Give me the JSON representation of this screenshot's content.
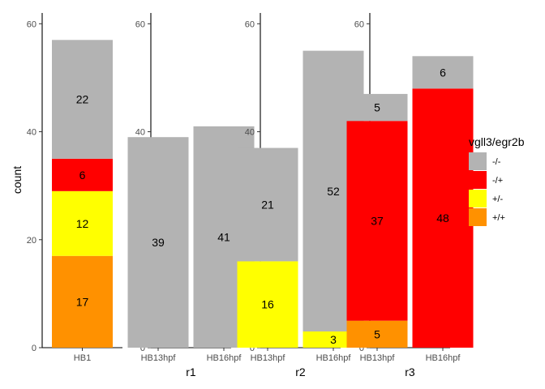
{
  "chart_data": {
    "type": "bar",
    "stacked": true,
    "ylabel": "count",
    "ylim": [
      0,
      62
    ],
    "yticks": [
      0,
      20,
      40,
      60
    ],
    "grid": false,
    "legend": {
      "title": "vgll3/egr2b",
      "placement": "right",
      "items": [
        {
          "label": "-/-",
          "color": "#b3b3b3"
        },
        {
          "label": "-/+",
          "color": "#ff0000"
        },
        {
          "label": "+/-",
          "color": "#ffff00"
        },
        {
          "label": "+/+",
          "color": "#ff9100"
        }
      ]
    },
    "panels": [
      {
        "facet_label": "",
        "categories": [
          "HB1"
        ],
        "bars": [
          {
            "category": "HB1",
            "segments": [
              {
                "genotype": "+/+",
                "value": 17
              },
              {
                "genotype": "+/-",
                "value": 12
              },
              {
                "genotype": "-/+",
                "value": 6
              },
              {
                "genotype": "-/-",
                "value": 22
              }
            ]
          }
        ]
      },
      {
        "facet_label": "r1",
        "categories": [
          "HB13hpf",
          "HB16hpf"
        ],
        "bars": [
          {
            "category": "HB13hpf",
            "segments": [
              {
                "genotype": "-/-",
                "value": 39
              }
            ]
          },
          {
            "category": "HB16hpf",
            "segments": [
              {
                "genotype": "-/-",
                "value": 41
              }
            ]
          }
        ]
      },
      {
        "facet_label": "r2",
        "categories": [
          "HB13hpf",
          "HB16hpf"
        ],
        "bars": [
          {
            "category": "HB13hpf",
            "segments": [
              {
                "genotype": "+/-",
                "value": 16
              },
              {
                "genotype": "-/-",
                "value": 21
              }
            ]
          },
          {
            "category": "HB16hpf",
            "segments": [
              {
                "genotype": "+/-",
                "value": 3
              },
              {
                "genotype": "-/-",
                "value": 52
              }
            ]
          }
        ]
      },
      {
        "facet_label": "r3",
        "categories": [
          "HB13hpf",
          "HB16hpf"
        ],
        "bars": [
          {
            "category": "HB13hpf",
            "segments": [
              {
                "genotype": "+/+",
                "value": 5
              },
              {
                "genotype": "-/+",
                "value": 37
              },
              {
                "genotype": "-/-",
                "value": 5
              }
            ]
          },
          {
            "category": "HB16hpf",
            "segments": [
              {
                "genotype": "-/+",
                "value": 48
              },
              {
                "genotype": "-/-",
                "value": 6
              }
            ]
          }
        ]
      }
    ]
  }
}
